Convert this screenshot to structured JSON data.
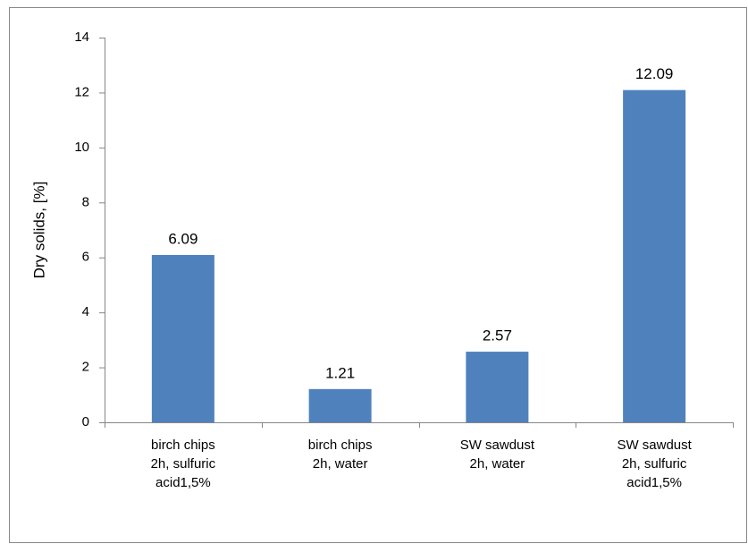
{
  "chart_data": {
    "type": "bar",
    "y_label": "Dry solids, [%]",
    "categories": [
      [
        "birch chips",
        "2h, sulfuric",
        "acid1,5%"
      ],
      [
        "birch chips",
        "2h, water"
      ],
      [
        "SW sawdust",
        "2h, water"
      ],
      [
        "SW sawdust",
        "2h, sulfuric",
        "acid1,5%"
      ]
    ],
    "values": [
      6.09,
      1.21,
      2.57,
      12.09
    ],
    "color": "#4f81bd",
    "ylim": [
      0,
      14
    ],
    "yticks": [
      0,
      2,
      4,
      6,
      8,
      10,
      12,
      14
    ],
    "grid": false
  }
}
